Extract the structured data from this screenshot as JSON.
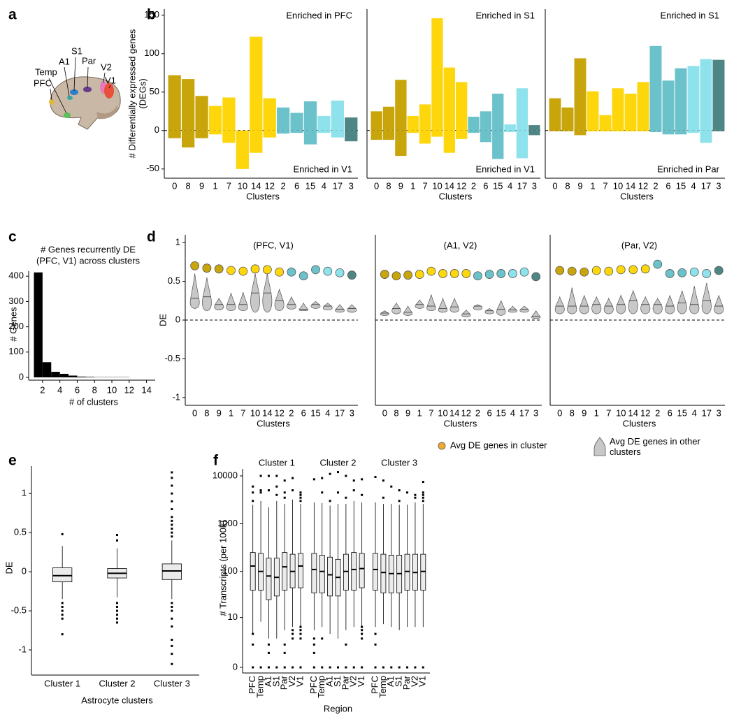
{
  "panel_letters": [
    "a",
    "b",
    "c",
    "d",
    "e",
    "f"
  ],
  "diagram": {
    "labels": [
      "S1",
      "A1",
      "Par",
      "Temp",
      "V2",
      "PFC",
      "V1"
    ]
  },
  "chart_data": [
    {
      "type": "bar",
      "categories": [
        "0",
        "8",
        "9",
        "1",
        "7",
        "10",
        "14",
        "12",
        "2",
        "6",
        "15",
        "4",
        "17",
        "3"
      ],
      "colors": [
        "#c9a50c",
        "#c9a50c",
        "#c9a50c",
        "#fdd60b",
        "#fdd60b",
        "#fdd60b",
        "#fdd60b",
        "#fdd60b",
        "#6cc2cb",
        "#6cc2cb",
        "#6cc2cb",
        "#8ee2ec",
        "#8ee2ec",
        "#4e8585"
      ],
      "series": [
        {
          "name": "Enriched in PFC",
          "values": [
            72,
            67,
            45,
            32,
            43,
            0,
            122,
            42,
            30,
            23,
            38,
            19,
            39,
            17
          ]
        },
        {
          "name": "Enriched in V1",
          "values": [
            -10,
            -22,
            -10,
            -5,
            -16,
            -50,
            -29,
            -9,
            -4,
            -3,
            -18,
            -3,
            -9,
            -14
          ]
        }
      ],
      "ylim": [
        -62,
        158
      ],
      "yticks": [
        -50,
        0,
        50,
        100,
        150
      ],
      "ylabel": [
        "# Differentially expressed genes",
        "(DEGs)"
      ],
      "xlabel": "Clusters",
      "zero_line": true
    },
    {
      "type": "bar",
      "categories": [
        "0",
        "8",
        "9",
        "1",
        "7",
        "10",
        "14",
        "12",
        "2",
        "6",
        "15",
        "4",
        "17",
        "3"
      ],
      "colors": [
        "#c9a50c",
        "#c9a50c",
        "#c9a50c",
        "#fdd60b",
        "#fdd60b",
        "#fdd60b",
        "#fdd60b",
        "#fdd60b",
        "#6cc2cb",
        "#6cc2cb",
        "#6cc2cb",
        "#8ee2ec",
        "#8ee2ec",
        "#4e8585"
      ],
      "series": [
        {
          "name": "Enriched in S1",
          "values": [
            25,
            31,
            66,
            19,
            34,
            146,
            82,
            63,
            18,
            25,
            48,
            8,
            55,
            7
          ]
        },
        {
          "name": "Enriched in V1",
          "values": [
            -12,
            -12,
            -33,
            -3,
            -17,
            -8,
            -29,
            -11,
            -3,
            -15,
            -37,
            -2,
            -36,
            -6
          ]
        }
      ],
      "ylim": [
        -62,
        158
      ],
      "xlabel": "Clusters",
      "zero_line": true
    },
    {
      "type": "bar",
      "categories": [
        "0",
        "8",
        "9",
        "1",
        "7",
        "10",
        "14",
        "12",
        "2",
        "6",
        "15",
        "4",
        "17",
        "3"
      ],
      "colors": [
        "#c9a50c",
        "#c9a50c",
        "#c9a50c",
        "#fdd60b",
        "#fdd60b",
        "#fdd60b",
        "#fdd60b",
        "#fdd60b",
        "#6cc2cb",
        "#6cc2cb",
        "#6cc2cb",
        "#8ee2ec",
        "#8ee2ec",
        "#4e8585"
      ],
      "series": [
        {
          "name": "Enriched in S1",
          "values": [
            42,
            30,
            94,
            51,
            20,
            55,
            48,
            63,
            110,
            65,
            81,
            84,
            93,
            92
          ]
        },
        {
          "name": "Enriched in Par",
          "values": [
            -1,
            -1,
            -6,
            -1,
            -1,
            -1,
            -1,
            -1,
            -2,
            -5,
            -5,
            -3,
            -16,
            -1
          ]
        }
      ],
      "ylim": [
        -62,
        158
      ],
      "xlabel": "Clusters",
      "zero_line": true
    },
    {
      "type": "histogram",
      "title": [
        "# Genes recurrently DE",
        "(PFC, V1) across clusters"
      ],
      "bins": [
        1,
        2,
        3,
        4,
        5,
        6,
        7,
        8,
        9,
        10,
        11,
        12,
        13,
        14,
        15
      ],
      "counts": [
        415,
        60,
        22,
        14,
        7,
        3,
        2,
        1,
        1,
        1,
        1,
        0,
        0,
        0
      ],
      "xlim": [
        0.8,
        15
      ],
      "xticks": [
        2,
        4,
        6,
        8,
        10,
        12,
        14
      ],
      "ylim": [
        0,
        420
      ],
      "yticks": [
        0,
        100,
        200,
        300,
        400
      ],
      "ylabel": "# Genes",
      "xlabel": "# of clusters",
      "color": "#000000"
    },
    {
      "type": "dot_violin",
      "title": "(PFC, V1)",
      "categories": [
        "0",
        "8",
        "9",
        "1",
        "7",
        "10",
        "14",
        "12",
        "2",
        "6",
        "15",
        "4",
        "17",
        "3"
      ],
      "colors": [
        "#c9a50c",
        "#c9a50c",
        "#c9a50c",
        "#fdd60b",
        "#fdd60b",
        "#fdd60b",
        "#fdd60b",
        "#fdd60b",
        "#6cc2cb",
        "#6cc2cb",
        "#6cc2cb",
        "#8ee2ec",
        "#8ee2ec",
        "#4e8585"
      ],
      "series": [
        {
          "name": "Avg DE genes in cluster",
          "color": "#f0a92e",
          "values": [
            0.7,
            0.67,
            0.66,
            0.64,
            0.63,
            0.66,
            0.65,
            0.62,
            0.62,
            0.57,
            0.65,
            0.63,
            0.61,
            0.58
          ]
        },
        {
          "name": "Avg DE genes in other clusters",
          "color": "#c8c8c8",
          "low": [
            0.15,
            0.12,
            0.13,
            0.12,
            0.12,
            0.1,
            0.1,
            0.12,
            0.14,
            0.12,
            0.15,
            0.13,
            0.1,
            0.1
          ],
          "median": [
            0.28,
            0.3,
            0.2,
            0.2,
            0.2,
            0.35,
            0.35,
            0.25,
            0.2,
            0.14,
            0.2,
            0.18,
            0.14,
            0.15
          ],
          "high": [
            0.6,
            0.55,
            0.28,
            0.35,
            0.36,
            0.6,
            0.6,
            0.4,
            0.3,
            0.22,
            0.24,
            0.22,
            0.2,
            0.2
          ]
        }
      ],
      "ylim": [
        -1.1,
        1.1
      ],
      "yticks": [
        -1,
        -0.5,
        0,
        0.5,
        1
      ],
      "ylabel": "DE",
      "xlabel": "Clusters",
      "zero_line": true
    },
    {
      "type": "dot_violin",
      "title": "(A1, V2)",
      "categories": [
        "0",
        "8",
        "9",
        "1",
        "7",
        "10",
        "14",
        "12",
        "2",
        "6",
        "15",
        "4",
        "17",
        "3"
      ],
      "colors": [
        "#c9a50c",
        "#c9a50c",
        "#c9a50c",
        "#fdd60b",
        "#fdd60b",
        "#fdd60b",
        "#fdd60b",
        "#fdd60b",
        "#6cc2cb",
        "#6cc2cb",
        "#6cc2cb",
        "#8ee2ec",
        "#8ee2ec",
        "#4e8585"
      ],
      "series": [
        {
          "values": [
            0.59,
            0.57,
            0.58,
            0.59,
            0.63,
            0.6,
            0.6,
            0.6,
            0.57,
            0.59,
            0.6,
            0.6,
            0.62,
            0.56
          ]
        },
        {
          "color": "#c8c8c8",
          "low": [
            0.06,
            0.08,
            0.06,
            0.15,
            0.12,
            0.1,
            0.1,
            0.04,
            0.13,
            0.08,
            0.06,
            0.1,
            0.1,
            0.02
          ],
          "median": [
            0.09,
            0.15,
            0.1,
            0.2,
            0.18,
            0.15,
            0.17,
            0.08,
            0.18,
            0.12,
            0.14,
            0.13,
            0.14,
            0.05
          ],
          "high": [
            0.12,
            0.22,
            0.18,
            0.26,
            0.33,
            0.28,
            0.28,
            0.13,
            0.2,
            0.15,
            0.25,
            0.18,
            0.18,
            0.12
          ]
        }
      ],
      "ylim": [
        -1.1,
        1.1
      ],
      "xlabel": "Clusters",
      "zero_line": true
    },
    {
      "type": "dot_violin",
      "title": "(Par, V2)",
      "categories": [
        "0",
        "8",
        "9",
        "1",
        "7",
        "10",
        "14",
        "12",
        "2",
        "6",
        "15",
        "4",
        "17",
        "3"
      ],
      "colors": [
        "#c9a50c",
        "#c9a50c",
        "#c9a50c",
        "#fdd60b",
        "#fdd60b",
        "#fdd60b",
        "#fdd60b",
        "#fdd60b",
        "#6cc2cb",
        "#6cc2cb",
        "#6cc2cb",
        "#8ee2ec",
        "#8ee2ec",
        "#4e8585"
      ],
      "series": [
        {
          "values": [
            0.64,
            0.63,
            0.62,
            0.64,
            0.63,
            0.65,
            0.65,
            0.66,
            0.72,
            0.6,
            0.61,
            0.62,
            0.6,
            0.64
          ]
        },
        {
          "color": "#c8c8c8",
          "low": [
            0.08,
            0.08,
            0.08,
            0.08,
            0.08,
            0.08,
            0.08,
            0.08,
            0.08,
            0.08,
            0.08,
            0.08,
            0.08,
            0.08
          ],
          "median": [
            0.18,
            0.18,
            0.18,
            0.2,
            0.18,
            0.2,
            0.25,
            0.2,
            0.2,
            0.18,
            0.22,
            0.2,
            0.25,
            0.18
          ],
          "high": [
            0.3,
            0.42,
            0.32,
            0.3,
            0.28,
            0.32,
            0.38,
            0.3,
            0.28,
            0.32,
            0.38,
            0.44,
            0.48,
            0.32
          ]
        }
      ],
      "ylim": [
        -1.1,
        1.1
      ],
      "xlabel": "Clusters",
      "zero_line": true
    },
    {
      "type": "box",
      "categories": [
        "Cluster 1",
        "Cluster 2",
        "Cluster 3"
      ],
      "color": "#ebebeb",
      "boxes": [
        {
          "whislo": -0.35,
          "q1": -0.13,
          "med": -0.05,
          "q3": 0.05,
          "whishi": 0.33,
          "fliers": [
            -0.4,
            -0.45,
            -0.5,
            -0.55,
            -0.6,
            -0.8,
            0.48
          ]
        },
        {
          "whislo": -0.33,
          "q1": -0.08,
          "med": -0.02,
          "q3": 0.04,
          "whishi": 0.3,
          "fliers": [
            -0.4,
            -0.45,
            -0.5,
            -0.55,
            -0.6,
            -0.65,
            0.4,
            0.47
          ]
        },
        {
          "whislo": -0.35,
          "q1": -0.1,
          "med": 0.01,
          "q3": 0.1,
          "whishi": 0.4,
          "fliers": [
            0.45,
            0.5,
            0.55,
            0.6,
            0.65,
            0.7,
            0.8,
            0.9,
            1.0,
            1.1,
            1.2,
            1.27,
            -0.4,
            -0.45,
            -0.5,
            -0.6,
            -0.7,
            -0.87,
            -0.95,
            -1.05,
            -1.18
          ]
        }
      ],
      "ylim": [
        -1.25,
        1.35
      ],
      "yticks": [
        -1,
        -0.5,
        0,
        0.5,
        1
      ],
      "ylabel": "DE",
      "xlabel": "Astrocyte clusters"
    },
    {
      "type": "box",
      "groups": [
        "Cluster 1",
        "Cluster 2",
        "Cluster 3"
      ],
      "categories": [
        "PFC",
        "Temp",
        "A1",
        "S1",
        "Par",
        "V2",
        "V1"
      ],
      "color": "#ebebeb",
      "yscale": "log1p",
      "boxes": [
        {
          "whislo": 4,
          "q1": 40,
          "med": 130,
          "q3": 250,
          "whishi": 2500,
          "fliers": [
            0,
            2,
            4,
            3000,
            4500,
            6000
          ]
        },
        {
          "whislo": 8,
          "q1": 40,
          "med": 100,
          "q3": 240,
          "whishi": 3000,
          "fliers": [
            0,
            10000,
            5000,
            4500
          ]
        },
        {
          "whislo": 3,
          "q1": 25,
          "med": 80,
          "q3": 190,
          "whishi": 2200,
          "fliers": [
            0,
            1,
            2,
            5000,
            10000
          ]
        },
        {
          "whislo": 3,
          "q1": 30,
          "med": 75,
          "q3": 190,
          "whishi": 3000,
          "fliers": [
            0,
            4000,
            6000,
            10000
          ]
        },
        {
          "whislo": 5,
          "q1": 40,
          "med": 125,
          "q3": 250,
          "whishi": 2600,
          "fliers": [
            0,
            1,
            2,
            3500,
            4500,
            8000
          ]
        },
        {
          "whislo": 6,
          "q1": 45,
          "med": 100,
          "q3": 230,
          "whishi": 3200,
          "fliers": [
            0,
            3,
            4,
            5,
            5000,
            9000
          ]
        },
        {
          "whislo": 6,
          "q1": 45,
          "med": 130,
          "q3": 240,
          "whishi": 2600,
          "fliers": [
            0,
            3,
            4,
            5,
            6,
            3000,
            3500,
            4000,
            4500
          ]
        },
        {
          "whislo": 5,
          "q1": 35,
          "med": 110,
          "q3": 240,
          "whishi": 2800,
          "fliers": [
            0,
            1,
            2,
            3,
            8500
          ]
        },
        {
          "whislo": 6,
          "q1": 35,
          "med": 100,
          "q3": 220,
          "whishi": 2700,
          "fliers": [
            0,
            3,
            9000,
            4500
          ]
        },
        {
          "whislo": 4,
          "q1": 30,
          "med": 85,
          "q3": 200,
          "whishi": 2400,
          "fliers": [
            0,
            11000,
            3000
          ]
        },
        {
          "whislo": 3,
          "q1": 30,
          "med": 75,
          "q3": 180,
          "whishi": 2600,
          "fliers": [
            0,
            12000,
            4500
          ]
        },
        {
          "whislo": 5,
          "q1": 40,
          "med": 100,
          "q3": 230,
          "whishi": 2600,
          "fliers": [
            0,
            2,
            10000,
            3500
          ]
        },
        {
          "whislo": 6,
          "q1": 40,
          "med": 110,
          "q3": 250,
          "whishi": 3000,
          "fliers": [
            0,
            5000,
            8000
          ]
        },
        {
          "whislo": 6,
          "q1": 45,
          "med": 115,
          "q3": 240,
          "whishi": 2800,
          "fliers": [
            0,
            3,
            4,
            5,
            6,
            8500,
            4000
          ]
        },
        {
          "whislo": 6,
          "q1": 40,
          "med": 110,
          "q3": 240,
          "whishi": 2800,
          "fliers": [
            0,
            2,
            4,
            9500
          ]
        },
        {
          "whislo": 7,
          "q1": 35,
          "med": 95,
          "q3": 230,
          "whishi": 2600,
          "fliers": [
            0,
            8000,
            3500
          ]
        },
        {
          "whislo": 6,
          "q1": 35,
          "med": 90,
          "q3": 220,
          "whishi": 2600,
          "fliers": [
            0,
            6000
          ]
        },
        {
          "whislo": 5,
          "q1": 35,
          "med": 90,
          "q3": 220,
          "whishi": 2500,
          "fliers": [
            0,
            5000,
            3000
          ]
        },
        {
          "whislo": 6,
          "q1": 40,
          "med": 100,
          "q3": 230,
          "whishi": 2500,
          "fliers": [
            0,
            4500
          ]
        },
        {
          "whislo": 6,
          "q1": 40,
          "med": 95,
          "q3": 230,
          "whishi": 2800,
          "fliers": [
            0,
            4000,
            3500
          ]
        },
        {
          "whislo": 6,
          "q1": 40,
          "med": 100,
          "q3": 230,
          "whishi": 2600,
          "fliers": [
            0,
            7500,
            3000,
            3500,
            4000,
            4500
          ]
        }
      ],
      "ylim": [
        0,
        14000
      ],
      "yticks": [
        0,
        10,
        100,
        1000,
        10000
      ],
      "ylabel": "# Transcripts (per 100k)",
      "xlabel": "Region"
    }
  ]
}
